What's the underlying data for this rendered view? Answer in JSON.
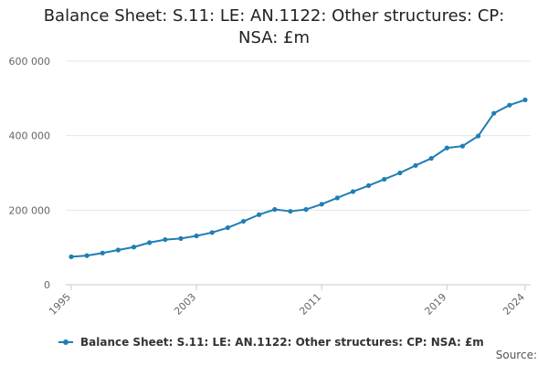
{
  "title_line1": "Balance Sheet: S.11: LE: AN.1122: Other structures: CP:",
  "title_line2": "NSA: £m",
  "source_label": "Source:",
  "chart_data": {
    "type": "line",
    "title": "Balance Sheet: S.11: LE: AN.1122: Other structures: CP: NSA: £m",
    "x": [
      1995,
      1996,
      1997,
      1998,
      1999,
      2000,
      2001,
      2002,
      2003,
      2004,
      2005,
      2006,
      2007,
      2008,
      2009,
      2010,
      2011,
      2012,
      2013,
      2014,
      2015,
      2016,
      2017,
      2018,
      2019,
      2020,
      2021,
      2022,
      2023,
      2024
    ],
    "series": [
      {
        "name": "Balance Sheet: S.11: LE: AN.1122: Other structures: CP: NSA: £m",
        "values": [
          75000,
          78000,
          85000,
          93000,
          101000,
          113000,
          121000,
          124000,
          131000,
          140000,
          153000,
          170000,
          188000,
          202000,
          197000,
          202000,
          216000,
          233000,
          250000,
          266000,
          283000,
          300000,
          320000,
          339000,
          367000,
          372000,
          399000,
          460000,
          482000,
          496000
        ]
      }
    ],
    "yticks": [
      "0",
      "200 000",
      "400 000",
      "600 000"
    ],
    "ytick_values": [
      0,
      200000,
      400000,
      600000
    ],
    "xticks": [
      "1995",
      "2003",
      "2011",
      "2019",
      "2024"
    ],
    "xtick_values": [
      1995,
      2003,
      2011,
      2019,
      2024
    ],
    "ylim": [
      0,
      600000
    ],
    "xlim": [
      1995,
      2024
    ],
    "grid": true,
    "legend_position": "bottom",
    "color": "#1f7eb5"
  }
}
